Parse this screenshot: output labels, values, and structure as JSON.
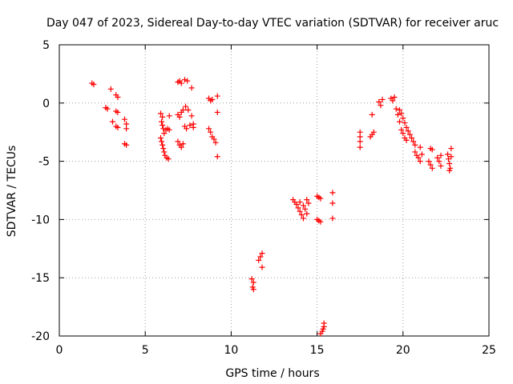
{
  "chart_data": {
    "type": "scatter",
    "title": "Day 047 of 2023, Sidereal Day-to-day VTEC variation (SDTVAR) for receiver aruc",
    "xlabel": "GPS time / hours",
    "ylabel": "SDTVAR / TECUs",
    "xlim": [
      0,
      25
    ],
    "ylim": [
      -20,
      5
    ],
    "xticks": [
      0,
      5,
      10,
      15,
      20,
      25
    ],
    "yticks": [
      -20,
      -15,
      -10,
      -5,
      0,
      5
    ],
    "xtick_labels": [
      "0",
      "5",
      "10",
      "15",
      "20",
      "25"
    ],
    "ytick_labels": [
      "-20",
      "-15",
      "-10",
      "-5",
      "0",
      "5"
    ],
    "grid": true,
    "marker": "+",
    "color": "#ff0000",
    "series": [
      {
        "name": "SDTVAR",
        "points": [
          [
            1.9,
            1.7
          ],
          [
            2.0,
            1.6
          ],
          [
            2.7,
            -0.4
          ],
          [
            2.8,
            -0.5
          ],
          [
            3.0,
            1.2
          ],
          [
            3.1,
            -1.6
          ],
          [
            3.3,
            0.7
          ],
          [
            3.4,
            0.5
          ],
          [
            3.3,
            -0.7
          ],
          [
            3.4,
            -0.8
          ],
          [
            3.3,
            -2.0
          ],
          [
            3.4,
            -2.1
          ],
          [
            3.8,
            -1.4
          ],
          [
            3.9,
            -1.8
          ],
          [
            3.9,
            -2.2
          ],
          [
            3.8,
            -3.5
          ],
          [
            3.9,
            -3.6
          ],
          [
            5.9,
            -0.9
          ],
          [
            6.0,
            -1.2
          ],
          [
            5.95,
            -1.6
          ],
          [
            6.0,
            -1.9
          ],
          [
            6.05,
            -2.2
          ],
          [
            6.1,
            -2.6
          ],
          [
            6.2,
            -2.3
          ],
          [
            6.3,
            -2.2
          ],
          [
            6.4,
            -2.3
          ],
          [
            5.9,
            -3.0
          ],
          [
            5.95,
            -3.3
          ],
          [
            6.0,
            -3.6
          ],
          [
            6.05,
            -3.9
          ],
          [
            6.1,
            -4.2
          ],
          [
            6.15,
            -4.5
          ],
          [
            6.25,
            -4.7
          ],
          [
            6.35,
            -4.8
          ],
          [
            6.4,
            -1.1
          ],
          [
            6.9,
            1.8
          ],
          [
            7.0,
            1.9
          ],
          [
            7.1,
            1.7
          ],
          [
            7.3,
            2.0
          ],
          [
            7.45,
            1.9
          ],
          [
            7.7,
            1.3
          ],
          [
            6.9,
            -1.0
          ],
          [
            7.0,
            -1.2
          ],
          [
            7.1,
            -0.8
          ],
          [
            7.2,
            -0.6
          ],
          [
            7.35,
            -0.3
          ],
          [
            7.5,
            -0.6
          ],
          [
            7.7,
            -1.1
          ],
          [
            7.8,
            -1.8
          ],
          [
            6.9,
            -3.3
          ],
          [
            7.0,
            -3.6
          ],
          [
            7.1,
            -3.8
          ],
          [
            7.2,
            -3.5
          ],
          [
            7.3,
            -2.0
          ],
          [
            7.4,
            -2.2
          ],
          [
            7.6,
            -1.9
          ],
          [
            7.8,
            -2.1
          ],
          [
            8.7,
            0.4
          ],
          [
            8.8,
            0.2
          ],
          [
            8.9,
            0.3
          ],
          [
            9.2,
            0.6
          ],
          [
            9.2,
            -0.8
          ],
          [
            8.7,
            -2.2
          ],
          [
            8.8,
            -2.5
          ],
          [
            8.9,
            -2.9
          ],
          [
            9.0,
            -3.1
          ],
          [
            9.1,
            -3.4
          ],
          [
            9.2,
            -4.6
          ],
          [
            11.2,
            -15.1
          ],
          [
            11.3,
            -15.4
          ],
          [
            11.25,
            -15.8
          ],
          [
            11.3,
            -16.0
          ],
          [
            11.6,
            -13.5
          ],
          [
            11.7,
            -13.2
          ],
          [
            11.8,
            -12.9
          ],
          [
            11.8,
            -14.1
          ],
          [
            13.6,
            -8.3
          ],
          [
            13.7,
            -8.5
          ],
          [
            13.8,
            -8.7
          ],
          [
            13.9,
            -9.0
          ],
          [
            14.0,
            -9.3
          ],
          [
            14.1,
            -9.6
          ],
          [
            14.2,
            -9.9
          ],
          [
            14.0,
            -8.5
          ],
          [
            14.2,
            -8.8
          ],
          [
            14.3,
            -9.1
          ],
          [
            14.4,
            -8.3
          ],
          [
            14.5,
            -8.6
          ],
          [
            14.4,
            -9.5
          ],
          [
            15.0,
            -8.0
          ],
          [
            15.1,
            -8.1
          ],
          [
            15.2,
            -8.2
          ],
          [
            15.0,
            -10.0
          ],
          [
            15.1,
            -10.1
          ],
          [
            15.2,
            -10.2
          ],
          [
            15.9,
            -7.7
          ],
          [
            15.9,
            -8.6
          ],
          [
            15.9,
            -9.9
          ],
          [
            15.2,
            -19.8
          ],
          [
            15.3,
            -19.6
          ],
          [
            15.35,
            -19.4
          ],
          [
            15.4,
            -19.2
          ],
          [
            15.4,
            -18.9
          ],
          [
            17.5,
            -2.5
          ],
          [
            17.5,
            -2.9
          ],
          [
            17.5,
            -3.3
          ],
          [
            17.5,
            -3.8
          ],
          [
            18.1,
            -2.9
          ],
          [
            18.2,
            -2.7
          ],
          [
            18.3,
            -2.5
          ],
          [
            18.2,
            -1.0
          ],
          [
            18.6,
            0.1
          ],
          [
            18.7,
            -0.2
          ],
          [
            18.8,
            0.3
          ],
          [
            19.3,
            0.4
          ],
          [
            19.4,
            0.2
          ],
          [
            19.5,
            0.5
          ],
          [
            19.6,
            -0.5
          ],
          [
            19.7,
            -1.0
          ],
          [
            19.8,
            -1.6
          ],
          [
            19.9,
            -2.3
          ],
          [
            20.0,
            -2.6
          ],
          [
            20.1,
            -3.0
          ],
          [
            20.2,
            -3.2
          ],
          [
            19.8,
            -0.6
          ],
          [
            19.9,
            -0.9
          ],
          [
            20.0,
            -1.3
          ],
          [
            20.1,
            -1.7
          ],
          [
            20.2,
            -2.1
          ],
          [
            20.3,
            -2.4
          ],
          [
            20.4,
            -2.7
          ],
          [
            20.5,
            -3.0
          ],
          [
            20.6,
            -3.3
          ],
          [
            20.7,
            -3.6
          ],
          [
            20.7,
            -4.2
          ],
          [
            20.8,
            -4.5
          ],
          [
            20.9,
            -4.7
          ],
          [
            21.0,
            -5.0
          ],
          [
            21.0,
            -3.8
          ],
          [
            21.1,
            -4.4
          ],
          [
            21.5,
            -5.0
          ],
          [
            21.6,
            -5.3
          ],
          [
            21.7,
            -5.6
          ],
          [
            21.6,
            -3.9
          ],
          [
            21.7,
            -4.0
          ],
          [
            22.0,
            -4.7
          ],
          [
            22.1,
            -5.0
          ],
          [
            22.2,
            -4.5
          ],
          [
            22.2,
            -5.4
          ],
          [
            22.6,
            -4.4
          ],
          [
            22.65,
            -4.8
          ],
          [
            22.7,
            -5.2
          ],
          [
            22.75,
            -5.6
          ],
          [
            22.8,
            -3.9
          ],
          [
            22.8,
            -4.6
          ],
          [
            22.7,
            -5.8
          ]
        ]
      }
    ]
  }
}
